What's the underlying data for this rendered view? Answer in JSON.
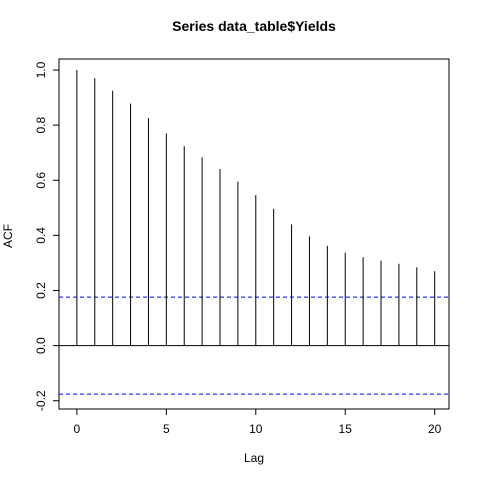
{
  "chart_data": {
    "type": "bar",
    "title": "Series  data_table$Yields",
    "xlabel": "Lag",
    "ylabel": "ACF",
    "xlim": [
      -1,
      20.8
    ],
    "ylim": [
      -0.23,
      1.04
    ],
    "x_ticks": [
      0,
      5,
      10,
      15,
      20
    ],
    "y_ticks": [
      -0.2,
      0.0,
      0.2,
      0.4,
      0.6,
      0.8,
      1.0
    ],
    "x_tick_labels": [
      "0",
      "5",
      "10",
      "15",
      "20"
    ],
    "y_tick_labels": [
      "-0.2",
      "0.0",
      "0.2",
      "0.4",
      "0.6",
      "0.8",
      "1.0"
    ],
    "lags": [
      0,
      1,
      2,
      3,
      4,
      5,
      6,
      7,
      8,
      9,
      10,
      11,
      12,
      13,
      14,
      15,
      16,
      17,
      18,
      19,
      20
    ],
    "acf": [
      1.0,
      0.97,
      0.925,
      0.878,
      0.826,
      0.77,
      0.724,
      0.683,
      0.641,
      0.595,
      0.546,
      0.496,
      0.44,
      0.396,
      0.362,
      0.337,
      0.321,
      0.308,
      0.297,
      0.284,
      0.27
    ],
    "confidence_bound": 0.176,
    "zero_line": 0,
    "colors": {
      "bars": "#000000",
      "ci": "#0000ff",
      "axes": "#000000"
    }
  }
}
